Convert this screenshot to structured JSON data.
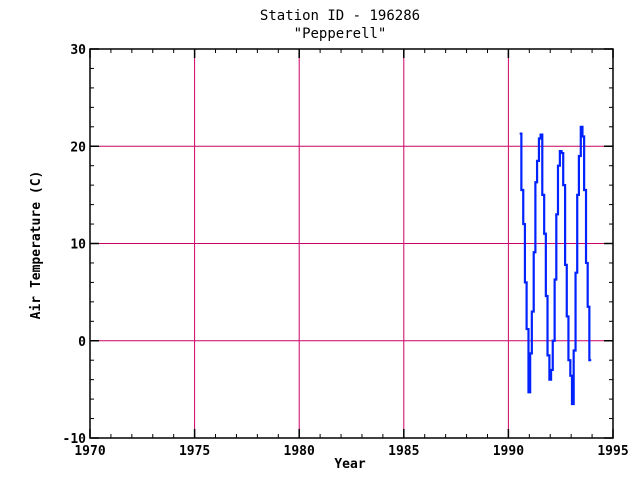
{
  "chart_data": {
    "type": "line",
    "title": "Station ID - 196286",
    "subtitle": "\"Pepperell\"",
    "xlabel": "Year",
    "ylabel": "Air Temperature (C)",
    "xlim": [
      1970,
      1995
    ],
    "ylim": [
      -10,
      30
    ],
    "x_ticks": [
      1970,
      1975,
      1980,
      1985,
      1990,
      1995
    ],
    "y_ticks": [
      -10,
      0,
      10,
      20,
      30
    ],
    "x_gridlines": [
      1975,
      1980,
      1985,
      1990
    ],
    "y_gridlines": [
      0,
      10,
      20
    ],
    "grid": true,
    "series": [
      {
        "step": true,
        "x": [
          1990.54,
          1990.62,
          1990.71,
          1990.79,
          1990.87,
          1990.96,
          1991.04,
          1991.12,
          1991.21,
          1991.29,
          1991.37,
          1991.46,
          1991.54,
          1991.62,
          1991.71,
          1991.79,
          1991.87,
          1991.96,
          1992.04,
          1992.12,
          1992.21,
          1992.29,
          1992.37,
          1992.46,
          1992.54,
          1992.62,
          1992.71,
          1992.79,
          1992.87,
          1992.96,
          1993.04,
          1993.12,
          1993.21,
          1993.29,
          1993.37,
          1993.46,
          1993.54,
          1993.62,
          1993.71,
          1993.79,
          1993.87,
          1993.96
        ],
        "y": [
          21.3,
          15.5,
          12.0,
          6.0,
          1.2,
          -5.3,
          -1.3,
          3.0,
          9.1,
          16.3,
          18.5,
          20.8,
          21.2,
          15.0,
          11.0,
          4.6,
          -1.5,
          -4.0,
          -3.0,
          0.0,
          6.3,
          13.0,
          18.0,
          19.5,
          19.3,
          16.0,
          7.8,
          2.5,
          -2.0,
          -3.6,
          -6.5,
          -1.0,
          7.0,
          15.0,
          19.0,
          22.0,
          21.0,
          15.5,
          8.0,
          3.5,
          -2.0,
          -2.0
        ]
      }
    ],
    "colors": {
      "line": "#0022ff",
      "grid": "#cc0066",
      "axis": "#000000",
      "background": "#ffffff"
    }
  }
}
